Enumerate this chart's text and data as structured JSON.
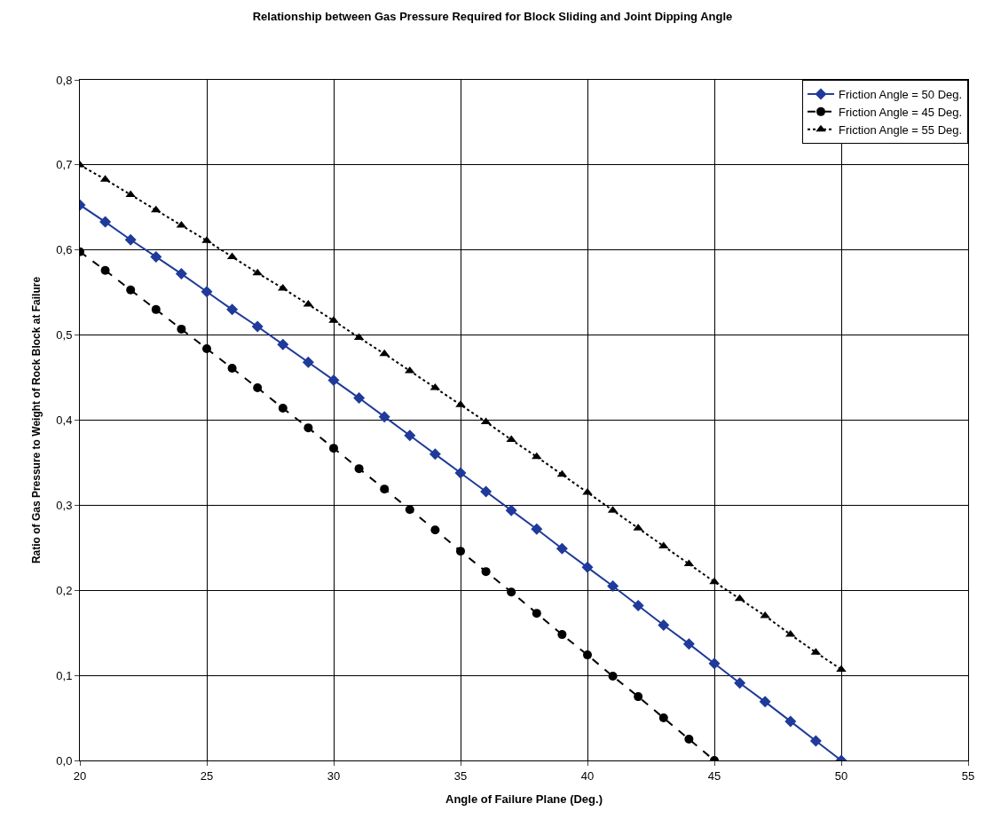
{
  "chart_data": {
    "type": "line",
    "title": "Relationship between Gas Pressure Required for Block Sliding and Joint Dipping Angle",
    "xlabel": "Angle of Failure Plane (Deg.)",
    "ylabel": "Ratio of Gas Pressure to Weight of Rock Block at Failure",
    "x": [
      20,
      21,
      22,
      23,
      24,
      25,
      26,
      27,
      28,
      29,
      30,
      31,
      32,
      33,
      34,
      35,
      36,
      37,
      38,
      39,
      40,
      41,
      42,
      43,
      44,
      45,
      46,
      47,
      48,
      49,
      50
    ],
    "series": [
      {
        "name": "Friction Angle = 50 Deg.",
        "color": "#1f3a9a",
        "marker": "diamond",
        "line_style": "solid",
        "values": [
          0.653,
          0.633,
          0.612,
          0.592,
          0.572,
          0.551,
          0.53,
          0.51,
          0.489,
          0.468,
          0.447,
          0.426,
          0.404,
          0.382,
          0.36,
          0.338,
          0.316,
          0.294,
          0.272,
          0.249,
          0.227,
          0.205,
          0.182,
          0.159,
          0.137,
          0.114,
          0.091,
          0.069,
          0.046,
          0.023,
          0.0
        ]
      },
      {
        "name": "Friction Angle = 45 Deg.",
        "color": "#000000",
        "marker": "circle",
        "line_style": "dashed",
        "x": [
          20,
          21,
          22,
          23,
          24,
          25,
          26,
          27,
          28,
          29,
          30,
          31,
          32,
          33,
          34,
          35,
          36,
          37,
          38,
          39,
          40,
          41,
          42,
          43,
          44,
          45
        ],
        "values": [
          0.598,
          0.576,
          0.553,
          0.53,
          0.507,
          0.484,
          0.461,
          0.438,
          0.414,
          0.391,
          0.367,
          0.343,
          0.319,
          0.295,
          0.271,
          0.246,
          0.222,
          0.198,
          0.173,
          0.148,
          0.124,
          0.099,
          0.075,
          0.05,
          0.025,
          0.0
        ]
      },
      {
        "name": "Friction Angle = 55 Deg.",
        "color": "#000000",
        "marker": "triangle",
        "line_style": "dotted",
        "values": [
          0.7,
          0.683,
          0.665,
          0.647,
          0.629,
          0.611,
          0.592,
          0.573,
          0.555,
          0.536,
          0.517,
          0.497,
          0.478,
          0.458,
          0.438,
          0.418,
          0.398,
          0.377,
          0.357,
          0.336,
          0.315,
          0.294,
          0.273,
          0.252,
          0.231,
          0.21,
          0.19,
          0.17,
          0.148,
          0.127,
          0.107
        ]
      }
    ],
    "xlim": [
      20,
      55
    ],
    "xticks": [
      20,
      25,
      30,
      35,
      40,
      45,
      50,
      55
    ],
    "ylim": [
      0,
      0.8
    ],
    "yticks": [
      {
        "value": 0,
        "label": "0,0"
      },
      {
        "value": 0.1,
        "label": "0,1"
      },
      {
        "value": 0.2,
        "label": "0,2"
      },
      {
        "value": 0.3,
        "label": "0,3"
      },
      {
        "value": 0.4,
        "label": "0,4"
      },
      {
        "value": 0.5,
        "label": "0,5"
      },
      {
        "value": 0.6,
        "label": "0,6"
      },
      {
        "value": 0.7,
        "label": "0,7"
      },
      {
        "value": 0.8,
        "label": "0,8"
      }
    ],
    "grid": true,
    "legend": "top right"
  }
}
